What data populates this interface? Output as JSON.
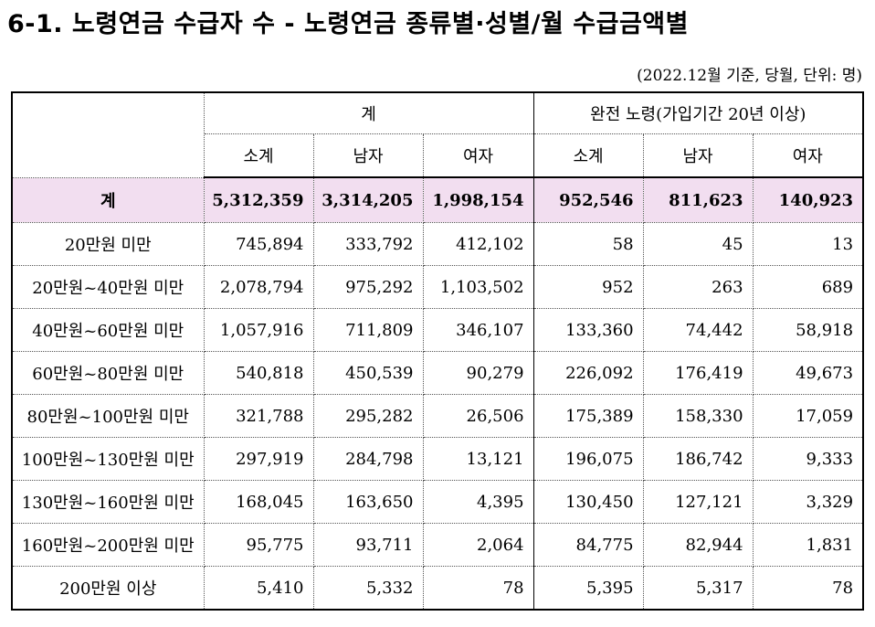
{
  "title": "6-1. 노령연금 수급자 수 -  노령연금 종류별·성별/월 수급금액별",
  "unit_note": "(2022.12월 기준, 당월, 단위: 명)",
  "header": {
    "group1": "계",
    "group2": "완전 노령(가입기간 20년 이상)",
    "sub": [
      "소계",
      "남자",
      "여자",
      "소계",
      "남자",
      "여자"
    ]
  },
  "total_row": {
    "label": "계",
    "values": [
      "5,312,359",
      "3,314,205",
      "1,998,154",
      "952,546",
      "811,623",
      "140,923"
    ]
  },
  "rows": [
    {
      "label": "20만원 미만",
      "values": [
        "745,894",
        "333,792",
        "412,102",
        "58",
        "45",
        "13"
      ]
    },
    {
      "label": "20만원~40만원 미만",
      "values": [
        "2,078,794",
        "975,292",
        "1,103,502",
        "952",
        "263",
        "689"
      ]
    },
    {
      "label": "40만원~60만원 미만",
      "values": [
        "1,057,916",
        "711,809",
        "346,107",
        "133,360",
        "74,442",
        "58,918"
      ]
    },
    {
      "label": "60만원~80만원 미만",
      "values": [
        "540,818",
        "450,539",
        "90,279",
        "226,092",
        "176,419",
        "49,673"
      ]
    },
    {
      "label": "80만원~100만원 미만",
      "values": [
        "321,788",
        "295,282",
        "26,506",
        "175,389",
        "158,330",
        "17,059"
      ]
    },
    {
      "label": "100만원~130만원 미만",
      "values": [
        "297,919",
        "284,798",
        "13,121",
        "196,075",
        "186,742",
        "9,333"
      ]
    },
    {
      "label": "130만원~160만원 미만",
      "values": [
        "168,045",
        "163,650",
        "4,395",
        "130,450",
        "127,121",
        "3,329"
      ]
    },
    {
      "label": "160만원~200만원 미만",
      "values": [
        "95,775",
        "93,711",
        "2,064",
        "84,775",
        "82,944",
        "1,831"
      ]
    },
    {
      "label": "200만원 이상",
      "values": [
        "5,410",
        "5,332",
        "78",
        "5,395",
        "5,317",
        "78"
      ]
    }
  ]
}
